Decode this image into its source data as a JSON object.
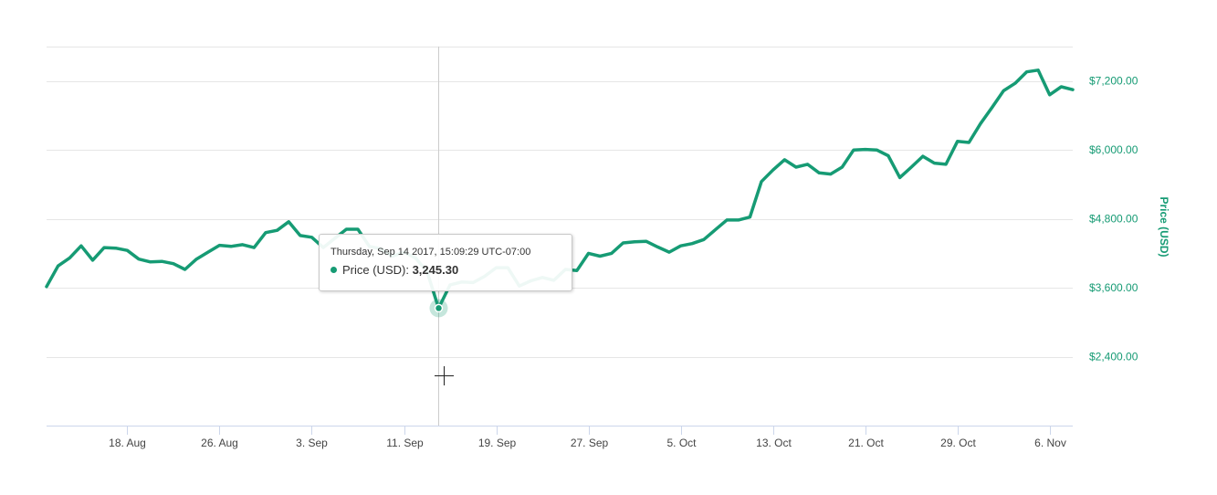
{
  "chart_data": {
    "type": "line",
    "title": "",
    "xlabel": "",
    "ylabel": "Price (USD)",
    "x_range": [
      "2017-08-11",
      "2017-11-08"
    ],
    "ylim": [
      1200,
      7800
    ],
    "y_ticks": [
      2400,
      3600,
      4800,
      6000,
      7200
    ],
    "y_tick_labels": [
      "$2,400.00",
      "$3,600.00",
      "$4,800.00",
      "$6,000.00",
      "$7,200.00"
    ],
    "x_ticks": [
      "2017-08-18",
      "2017-08-26",
      "2017-09-03",
      "2017-09-11",
      "2017-09-19",
      "2017-09-27",
      "2017-10-05",
      "2017-10-13",
      "2017-10-21",
      "2017-10-29",
      "2017-11-06"
    ],
    "x_tick_labels": [
      "18. Aug",
      "26. Aug",
      "3. Sep",
      "11. Sep",
      "19. Sep",
      "27. Sep",
      "5. Oct",
      "13. Oct",
      "21. Oct",
      "29. Oct",
      "6. Nov"
    ],
    "y_axis_position": "right",
    "grid": true,
    "legend": "none",
    "series": [
      {
        "name": "Price (USD)",
        "color": "#169b74",
        "points": [
          [
            "2017-08-11",
            3620
          ],
          [
            "2017-08-12",
            3980
          ],
          [
            "2017-08-13",
            4120
          ],
          [
            "2017-08-14",
            4330
          ],
          [
            "2017-08-15",
            4080
          ],
          [
            "2017-08-16",
            4300
          ],
          [
            "2017-08-17",
            4290
          ],
          [
            "2017-08-18",
            4250
          ],
          [
            "2017-08-19",
            4100
          ],
          [
            "2017-08-20",
            4050
          ],
          [
            "2017-08-21",
            4060
          ],
          [
            "2017-08-22",
            4020
          ],
          [
            "2017-08-23",
            3920
          ],
          [
            "2017-08-24",
            4100
          ],
          [
            "2017-08-25",
            4220
          ],
          [
            "2017-08-26",
            4340
          ],
          [
            "2017-08-27",
            4320
          ],
          [
            "2017-08-28",
            4350
          ],
          [
            "2017-08-29",
            4300
          ],
          [
            "2017-08-30",
            4560
          ],
          [
            "2017-08-31",
            4600
          ],
          [
            "2017-09-01",
            4750
          ],
          [
            "2017-09-02",
            4510
          ],
          [
            "2017-09-03",
            4480
          ],
          [
            "2017-09-04",
            4300
          ],
          [
            "2017-09-05",
            4460
          ],
          [
            "2017-09-06",
            4620
          ],
          [
            "2017-09-07",
            4620
          ],
          [
            "2017-09-08",
            4320
          ],
          [
            "2017-09-09",
            4280
          ],
          [
            "2017-09-10",
            4150
          ],
          [
            "2017-09-11",
            4220
          ],
          [
            "2017-09-12",
            4120
          ],
          [
            "2017-09-13",
            3880
          ],
          [
            "2017-09-14",
            3245
          ],
          [
            "2017-09-15",
            3650
          ],
          [
            "2017-09-16",
            3700
          ],
          [
            "2017-09-17",
            3690
          ],
          [
            "2017-09-18",
            3800
          ],
          [
            "2017-09-19",
            3950
          ],
          [
            "2017-09-20",
            3950
          ],
          [
            "2017-09-21",
            3630
          ],
          [
            "2017-09-22",
            3720
          ],
          [
            "2017-09-23",
            3780
          ],
          [
            "2017-09-24",
            3730
          ],
          [
            "2017-09-25",
            3920
          ],
          [
            "2017-09-26",
            3900
          ],
          [
            "2017-09-27",
            4200
          ],
          [
            "2017-09-28",
            4150
          ],
          [
            "2017-09-29",
            4200
          ],
          [
            "2017-09-30",
            4380
          ],
          [
            "2017-10-01",
            4400
          ],
          [
            "2017-10-02",
            4410
          ],
          [
            "2017-10-03",
            4310
          ],
          [
            "2017-10-04",
            4220
          ],
          [
            "2017-10-05",
            4330
          ],
          [
            "2017-10-06",
            4370
          ],
          [
            "2017-10-07",
            4440
          ],
          [
            "2017-10-08",
            4610
          ],
          [
            "2017-10-09",
            4780
          ],
          [
            "2017-10-10",
            4780
          ],
          [
            "2017-10-11",
            4830
          ],
          [
            "2017-10-12",
            5450
          ],
          [
            "2017-10-13",
            5650
          ],
          [
            "2017-10-14",
            5830
          ],
          [
            "2017-10-15",
            5700
          ],
          [
            "2017-10-16",
            5750
          ],
          [
            "2017-10-17",
            5600
          ],
          [
            "2017-10-18",
            5580
          ],
          [
            "2017-10-19",
            5700
          ],
          [
            "2017-10-20",
            6000
          ],
          [
            "2017-10-21",
            6010
          ],
          [
            "2017-10-22",
            6000
          ],
          [
            "2017-10-23",
            5900
          ],
          [
            "2017-10-24",
            5520
          ],
          [
            "2017-10-25",
            5700
          ],
          [
            "2017-10-26",
            5890
          ],
          [
            "2017-10-27",
            5770
          ],
          [
            "2017-10-28",
            5750
          ],
          [
            "2017-10-29",
            6150
          ],
          [
            "2017-10-30",
            6130
          ],
          [
            "2017-10-31",
            6460
          ],
          [
            "2017-11-01",
            6740
          ],
          [
            "2017-11-02",
            7030
          ],
          [
            "2017-11-03",
            7160
          ],
          [
            "2017-11-04",
            7360
          ],
          [
            "2017-11-05",
            7390
          ],
          [
            "2017-11-06",
            6960
          ],
          [
            "2017-11-07",
            7100
          ],
          [
            "2017-11-08",
            7050
          ]
        ]
      }
    ],
    "tooltip": {
      "header": "Thursday, Sep 14 2017, 15:09:29 UTC-07:00",
      "series_label": "Price (USD):",
      "value": "3,245.30",
      "hovered_point": [
        "2017-09-14",
        3245.3
      ]
    }
  }
}
